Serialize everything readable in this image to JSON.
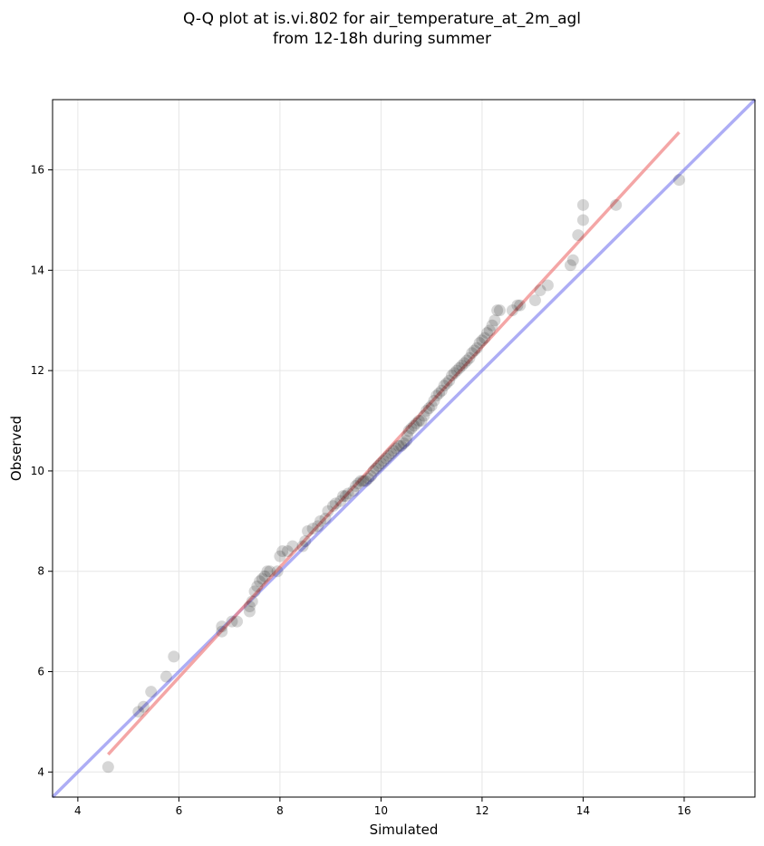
{
  "chart_data": {
    "type": "scatter",
    "title_line1": "Q-Q plot at is.vi.802 for air_temperature_at_2m_agl",
    "title_line2": "from 12-18h during summer",
    "xlabel": "Simulated",
    "ylabel": "Observed",
    "xlim": [
      3.5,
      17.4
    ],
    "ylim": [
      3.5,
      17.4
    ],
    "xticks": [
      4,
      6,
      8,
      10,
      12,
      14,
      16
    ],
    "yticks": [
      4,
      6,
      8,
      10,
      12,
      14,
      16
    ],
    "grid": true,
    "colors": {
      "points": "#000000",
      "fit_line": "#f08080",
      "identity_line": "#7777ee"
    },
    "points": [
      [
        4.6,
        4.1
      ],
      [
        5.2,
        5.2
      ],
      [
        5.3,
        5.3
      ],
      [
        5.45,
        5.6
      ],
      [
        5.75,
        5.9
      ],
      [
        5.9,
        6.3
      ],
      [
        6.85,
        6.8
      ],
      [
        6.85,
        6.9
      ],
      [
        7.05,
        7.0
      ],
      [
        7.15,
        7.0
      ],
      [
        7.4,
        7.2
      ],
      [
        7.4,
        7.3
      ],
      [
        7.45,
        7.4
      ],
      [
        7.5,
        7.6
      ],
      [
        7.55,
        7.7
      ],
      [
        7.6,
        7.8
      ],
      [
        7.65,
        7.85
      ],
      [
        7.7,
        7.9
      ],
      [
        7.75,
        8.0
      ],
      [
        7.8,
        8.0
      ],
      [
        7.95,
        8.0
      ],
      [
        8.0,
        8.3
      ],
      [
        8.05,
        8.4
      ],
      [
        8.15,
        8.4
      ],
      [
        8.25,
        8.5
      ],
      [
        8.45,
        8.5
      ],
      [
        8.5,
        8.6
      ],
      [
        8.55,
        8.8
      ],
      [
        8.65,
        8.85
      ],
      [
        8.75,
        8.9
      ],
      [
        8.8,
        9.0
      ],
      [
        8.9,
        9.05
      ],
      [
        8.95,
        9.2
      ],
      [
        9.05,
        9.3
      ],
      [
        9.1,
        9.35
      ],
      [
        9.2,
        9.4
      ],
      [
        9.25,
        9.5
      ],
      [
        9.3,
        9.5
      ],
      [
        9.35,
        9.55
      ],
      [
        9.45,
        9.6
      ],
      [
        9.5,
        9.7
      ],
      [
        9.55,
        9.75
      ],
      [
        9.6,
        9.8
      ],
      [
        9.65,
        9.8
      ],
      [
        9.7,
        9.8
      ],
      [
        9.75,
        9.85
      ],
      [
        9.8,
        9.9
      ],
      [
        9.85,
        10.0
      ],
      [
        9.9,
        10.05
      ],
      [
        9.95,
        10.1
      ],
      [
        10.0,
        10.15
      ],
      [
        10.05,
        10.2
      ],
      [
        10.1,
        10.25
      ],
      [
        10.15,
        10.3
      ],
      [
        10.2,
        10.35
      ],
      [
        10.25,
        10.4
      ],
      [
        10.3,
        10.45
      ],
      [
        10.35,
        10.5
      ],
      [
        10.4,
        10.5
      ],
      [
        10.45,
        10.55
      ],
      [
        10.5,
        10.6
      ],
      [
        10.52,
        10.7
      ],
      [
        10.55,
        10.8
      ],
      [
        10.6,
        10.85
      ],
      [
        10.65,
        10.9
      ],
      [
        10.7,
        10.95
      ],
      [
        10.75,
        11.0
      ],
      [
        10.8,
        11.0
      ],
      [
        10.85,
        11.1
      ],
      [
        10.9,
        11.2
      ],
      [
        10.95,
        11.25
      ],
      [
        11.0,
        11.3
      ],
      [
        11.05,
        11.4
      ],
      [
        11.1,
        11.5
      ],
      [
        11.15,
        11.55
      ],
      [
        11.2,
        11.6
      ],
      [
        11.25,
        11.7
      ],
      [
        11.3,
        11.75
      ],
      [
        11.35,
        11.8
      ],
      [
        11.4,
        11.9
      ],
      [
        11.45,
        11.95
      ],
      [
        11.5,
        12.0
      ],
      [
        11.55,
        12.05
      ],
      [
        11.6,
        12.1
      ],
      [
        11.65,
        12.15
      ],
      [
        11.7,
        12.2
      ],
      [
        11.75,
        12.25
      ],
      [
        11.8,
        12.35
      ],
      [
        11.85,
        12.4
      ],
      [
        11.9,
        12.45
      ],
      [
        11.95,
        12.55
      ],
      [
        12.0,
        12.6
      ],
      [
        12.05,
        12.65
      ],
      [
        12.1,
        12.75
      ],
      [
        12.15,
        12.8
      ],
      [
        12.2,
        12.9
      ],
      [
        12.25,
        13.0
      ],
      [
        12.3,
        13.2
      ],
      [
        12.35,
        13.2
      ],
      [
        12.6,
        13.2
      ],
      [
        12.7,
        13.3
      ],
      [
        12.75,
        13.3
      ],
      [
        13.05,
        13.4
      ],
      [
        13.15,
        13.6
      ],
      [
        13.3,
        13.7
      ],
      [
        13.75,
        14.1
      ],
      [
        13.8,
        14.2
      ],
      [
        13.9,
        14.7
      ],
      [
        14.0,
        15.0
      ],
      [
        14.0,
        15.3
      ],
      [
        14.65,
        15.3
      ],
      [
        15.9,
        15.8
      ]
    ],
    "fit_line": [
      [
        4.6,
        4.35
      ],
      [
        15.9,
        16.75
      ]
    ],
    "identity_line": [
      [
        3.5,
        3.5
      ],
      [
        17.4,
        17.4
      ]
    ]
  }
}
